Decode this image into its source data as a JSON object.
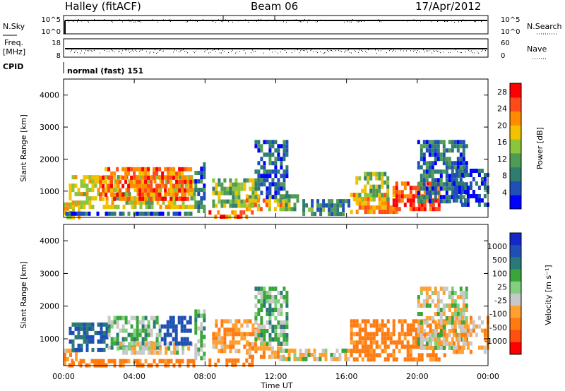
{
  "header": {
    "station": "Halley (fitACF)",
    "beam": "Beam 06",
    "date": "17/Apr/2012"
  },
  "top_panels": {
    "nsky_label": "N.Sky",
    "nsky_ticks": [
      "10^5",
      "10^0"
    ],
    "nsearch_label": "N.Search",
    "nsearch_ticks": [
      "10^5",
      "10^0"
    ],
    "freq_label_line1": "Freq.",
    "freq_label_line2": "[MHz]",
    "freq_ticks": [
      "18",
      "8"
    ],
    "nave_label": "Nave",
    "nave_ticks": [
      "60",
      "0"
    ],
    "cpid_label": "CPID",
    "cpid_value": "normal (fast) 151"
  },
  "colors": {
    "power_scale": [
      "#0000ff",
      "#1f4fb8",
      "#2e7d6e",
      "#4f9a55",
      "#8cc43a",
      "#f2c200",
      "#ff8c00",
      "#ff4a1a",
      "#ff0000"
    ],
    "velocity_scale": [
      "#1428c8",
      "#1e50b4",
      "#2a7878",
      "#3aa53a",
      "#80d080",
      "#c8c8c8",
      "#ffa030",
      "#ff7a10",
      "#ff5010",
      "#ff0000"
    ]
  },
  "chart_data": [
    {
      "type": "heatmap",
      "title": "Power",
      "xlabel": "",
      "ylabel": "Slant Range [km]",
      "xlim": [
        0,
        24
      ],
      "ylim": [
        180,
        4500
      ],
      "x_ticks": [
        "00:00",
        "04:00",
        "08:00",
        "12:00",
        "16:00",
        "20:00",
        "00:00"
      ],
      "y_ticks": [
        "1000",
        "2000",
        "3000",
        "4000"
      ],
      "colorbar_label": "Power [dB]",
      "colorbar_ticks": [
        "4",
        "8",
        "12",
        "16",
        "20",
        "24",
        "28"
      ],
      "colorbar_range": [
        0,
        30
      ],
      "regions": [
        {
          "t0": 0.0,
          "t1": 0.8,
          "r0": 250,
          "r1": 650,
          "v": 18
        },
        {
          "t0": 0.1,
          "t1": 7.4,
          "r0": 230,
          "r1": 360,
          "v": 6
        },
        {
          "t0": 0.3,
          "t1": 7.4,
          "r0": 550,
          "r1": 1500,
          "v": 17
        },
        {
          "t0": 2.0,
          "t1": 7.2,
          "r0": 800,
          "r1": 1750,
          "v": 24
        },
        {
          "t0": 7.4,
          "t1": 8.0,
          "r0": 400,
          "r1": 1900,
          "v": 8
        },
        {
          "t0": 8.2,
          "t1": 10.6,
          "r0": 230,
          "r1": 400,
          "v": 24
        },
        {
          "t0": 8.4,
          "t1": 11.0,
          "r0": 600,
          "r1": 1400,
          "v": 14
        },
        {
          "t0": 10.3,
          "t1": 12.4,
          "r0": 400,
          "r1": 900,
          "v": 20
        },
        {
          "t0": 10.8,
          "t1": 12.6,
          "r0": 800,
          "r1": 2600,
          "v": 6
        },
        {
          "t0": 12.2,
          "t1": 13.2,
          "r0": 400,
          "r1": 900,
          "v": 12
        },
        {
          "t0": 13.5,
          "t1": 16.2,
          "r0": 350,
          "r1": 750,
          "v": 9
        },
        {
          "t0": 16.2,
          "t1": 18.8,
          "r0": 350,
          "r1": 950,
          "v": 22
        },
        {
          "t0": 16.5,
          "t1": 18.4,
          "r0": 700,
          "r1": 1600,
          "v": 14
        },
        {
          "t0": 18.6,
          "t1": 21.3,
          "r0": 400,
          "r1": 1300,
          "v": 25
        },
        {
          "t0": 20.0,
          "t1": 22.8,
          "r0": 700,
          "r1": 2600,
          "v": 7
        },
        {
          "t0": 22.0,
          "t1": 24.0,
          "r0": 600,
          "r1": 1700,
          "v": 5
        }
      ]
    },
    {
      "type": "heatmap",
      "title": "Velocity",
      "xlabel": "Time UT",
      "ylabel": "Slant Range [km]",
      "xlim": [
        0,
        24
      ],
      "ylim": [
        180,
        4500
      ],
      "x_ticks": [
        "00:00",
        "04:00",
        "08:00",
        "12:00",
        "16:00",
        "20:00",
        "00:00"
      ],
      "y_ticks": [
        "1000",
        "2000",
        "3000",
        "4000"
      ],
      "colorbar_label": "Velocity [m s⁻¹]",
      "colorbar_ticks": [
        "1000",
        "500",
        "100",
        "25",
        "-25",
        "-100",
        "-500",
        "-1000"
      ],
      "regions": [
        {
          "t0": 0.0,
          "t1": 0.8,
          "r0": 250,
          "r1": 700,
          "v": -60
        },
        {
          "t0": 0.1,
          "t1": 7.4,
          "r0": 230,
          "r1": 380,
          "v": -150
        },
        {
          "t0": 0.3,
          "t1": 2.5,
          "r0": 600,
          "r1": 1500,
          "v": 300
        },
        {
          "t0": 2.5,
          "t1": 5.5,
          "r0": 700,
          "r1": 1700,
          "v": 60
        },
        {
          "t0": 3.0,
          "t1": 7.3,
          "r0": 550,
          "r1": 900,
          "v": 0
        },
        {
          "t0": 5.5,
          "t1": 7.2,
          "r0": 800,
          "r1": 1700,
          "v": 400
        },
        {
          "t0": 7.4,
          "t1": 8.0,
          "r0": 400,
          "r1": 1900,
          "v": 50
        },
        {
          "t0": 8.2,
          "t1": 10.6,
          "r0": 230,
          "r1": 400,
          "v": -200
        },
        {
          "t0": 8.4,
          "t1": 11.0,
          "r0": 600,
          "r1": 1600,
          "v": -80
        },
        {
          "t0": 10.3,
          "t1": 12.4,
          "r0": 400,
          "r1": 900,
          "v": -60
        },
        {
          "t0": 10.8,
          "t1": 12.6,
          "r0": 800,
          "r1": 2600,
          "v": 60
        },
        {
          "t0": 12.2,
          "t1": 16.2,
          "r0": 350,
          "r1": 700,
          "v": 0
        },
        {
          "t0": 16.2,
          "t1": 21.5,
          "r0": 350,
          "r1": 1600,
          "v": -150
        },
        {
          "t0": 20.0,
          "t1": 22.8,
          "r0": 700,
          "r1": 2600,
          "v": 0
        },
        {
          "t0": 22.0,
          "t1": 24.0,
          "r0": 600,
          "r1": 1700,
          "v": -60
        }
      ]
    }
  ]
}
